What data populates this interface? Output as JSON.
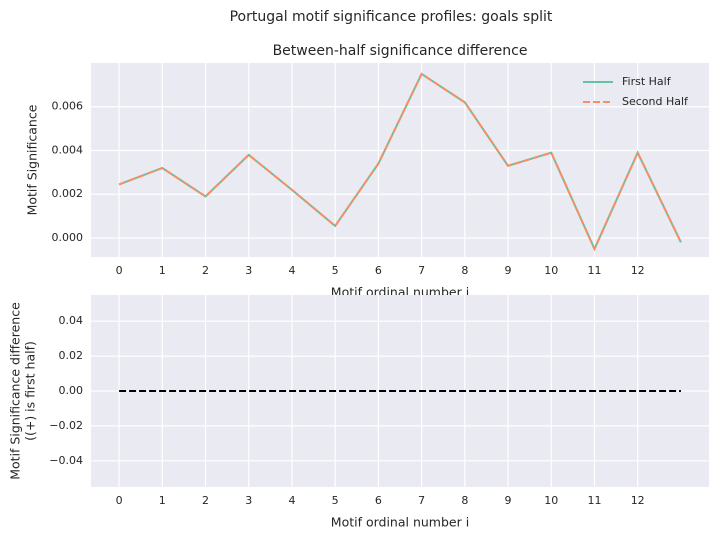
{
  "title": "Portugal motif significance profiles: goals split",
  "chart_data": [
    {
      "type": "line",
      "title": "Between-half significance difference",
      "xlabel": "Motif ordinal number i",
      "ylabel": [
        "Motif Significance"
      ],
      "x": [
        0,
        1,
        2,
        3,
        4,
        5,
        6,
        7,
        8,
        9,
        10,
        11,
        12,
        13
      ],
      "series": [
        {
          "name": "First Half",
          "color": "#66c2a5",
          "dash": "solid",
          "values": [
            0.00245,
            0.0032,
            0.0019,
            0.0038,
            0.0022,
            0.00055,
            0.0034,
            0.0075,
            0.0062,
            0.0033,
            0.0039,
            -0.0005,
            0.0039,
            -0.0002
          ]
        },
        {
          "name": "Second Half",
          "color": "#fc8d62",
          "dash": "dashed",
          "values": [
            0.00245,
            0.0032,
            0.0019,
            0.0038,
            0.0022,
            0.00055,
            0.0034,
            0.0075,
            0.0062,
            0.0033,
            0.0039,
            -0.0005,
            0.0039,
            -0.0002
          ]
        }
      ],
      "xlim": [
        -0.65,
        13.65
      ],
      "xticks": [
        0,
        1,
        2,
        3,
        4,
        5,
        6,
        7,
        8,
        9,
        10,
        11,
        12
      ],
      "ylim": [
        -0.00087,
        0.008
      ],
      "yticks": [
        {
          "value": 0,
          "label": "0.000"
        },
        {
          "value": 0.002,
          "label": "0.002"
        },
        {
          "value": 0.004,
          "label": "0.004"
        },
        {
          "value": 0.006,
          "label": "0.006"
        }
      ],
      "grid": true,
      "legend": "upper right"
    },
    {
      "type": "line",
      "xlabel": "Motif ordinal number i",
      "ylabel": [
        "Motif Significance difference",
        "((+) is first half)"
      ],
      "x": [
        0,
        1,
        2,
        3,
        4,
        5,
        6,
        7,
        8,
        9,
        10,
        11,
        12,
        13
      ],
      "series": [
        {
          "color": "#000000",
          "dash": "dashed",
          "values": [
            0,
            0,
            0,
            0,
            0,
            0,
            0,
            0,
            0,
            0,
            0,
            0,
            0,
            0
          ]
        }
      ],
      "xlim": [
        -0.65,
        13.65
      ],
      "xticks": [
        0,
        1,
        2,
        3,
        4,
        5,
        6,
        7,
        8,
        9,
        10,
        11,
        12
      ],
      "ylim": [
        -0.055,
        0.055
      ],
      "yticks": [
        {
          "value": -0.04,
          "label": "−0.04"
        },
        {
          "value": -0.02,
          "label": "−0.02"
        },
        {
          "value": 0,
          "label": "0.00"
        },
        {
          "value": 0.02,
          "label": "0.02"
        },
        {
          "value": 0.04,
          "label": "0.04"
        }
      ],
      "grid": true
    }
  ]
}
